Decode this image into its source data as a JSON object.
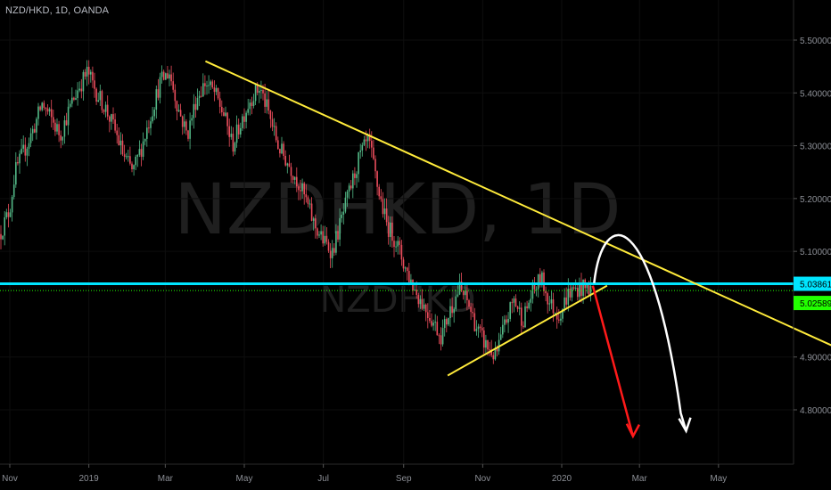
{
  "symbol_title": "NZD/HKD, 1D, OANDA",
  "watermark": {
    "big": "NZDHKD, 1D",
    "small": "NZDHKD"
  },
  "colors": {
    "background": "#000000",
    "up_candle": "#53b987",
    "down_candle": "#eb4d5c",
    "trendline": "#ffeb3b",
    "resistance": "#00e5ff",
    "current_price": "#22ff00",
    "bear_arrow": "#ff1a1a",
    "scenario_arrow": "#ffffff"
  },
  "chart_data": {
    "type": "candlestick",
    "ylim": [
      4.735,
      5.565
    ],
    "yticks": [
      "5.50000",
      "5.40000",
      "5.30000",
      "5.20000",
      "5.10000",
      "4.90000",
      "4.80000"
    ],
    "xticks": [
      "Nov",
      "2019",
      "Mar",
      "May",
      "Jul",
      "Sep",
      "Nov",
      "2020",
      "Mar",
      "May"
    ],
    "price_labels": {
      "resistance": {
        "value": 5.03861,
        "text": "5.03861"
      },
      "current": {
        "value": 5.02589,
        "text": "5.02589"
      }
    },
    "path": [
      [
        "2018-10-24",
        5.13
      ],
      [
        "2018-11-01",
        5.18
      ],
      [
        "2018-11-05",
        5.25
      ],
      [
        "2018-11-12",
        5.29
      ],
      [
        "2018-11-19",
        5.33
      ],
      [
        "2018-11-26",
        5.38
      ],
      [
        "2018-12-03",
        5.35
      ],
      [
        "2018-12-10",
        5.32
      ],
      [
        "2018-12-17",
        5.37
      ],
      [
        "2018-12-24",
        5.41
      ],
      [
        "2018-12-31",
        5.44
      ],
      [
        "2019-01-07",
        5.4
      ],
      [
        "2019-01-14",
        5.37
      ],
      [
        "2019-01-21",
        5.33
      ],
      [
        "2019-01-28",
        5.28
      ],
      [
        "2019-02-04",
        5.25
      ],
      [
        "2019-02-11",
        5.3
      ],
      [
        "2019-02-18",
        5.36
      ],
      [
        "2019-02-25",
        5.42
      ],
      [
        "2019-03-04",
        5.44
      ],
      [
        "2019-03-11",
        5.37
      ],
      [
        "2019-03-18",
        5.32
      ],
      [
        "2019-03-25",
        5.39
      ],
      [
        "2019-04-01",
        5.42
      ],
      [
        "2019-04-08",
        5.4
      ],
      [
        "2019-04-15",
        5.36
      ],
      [
        "2019-04-22",
        5.3
      ],
      [
        "2019-04-29",
        5.35
      ],
      [
        "2019-05-06",
        5.39
      ],
      [
        "2019-05-13",
        5.41
      ],
      [
        "2019-05-20",
        5.36
      ],
      [
        "2019-05-27",
        5.3
      ],
      [
        "2019-06-03",
        5.27
      ],
      [
        "2019-06-10",
        5.24
      ],
      [
        "2019-06-17",
        5.2
      ],
      [
        "2019-06-24",
        5.15
      ],
      [
        "2019-07-01",
        5.12
      ],
      [
        "2019-07-08",
        5.1
      ],
      [
        "2019-07-15",
        5.16
      ],
      [
        "2019-07-22",
        5.22
      ],
      [
        "2019-07-29",
        5.28
      ],
      [
        "2019-08-05",
        5.31
      ],
      [
        "2019-08-12",
        5.22
      ],
      [
        "2019-08-19",
        5.15
      ],
      [
        "2019-08-26",
        5.12
      ],
      [
        "2019-09-02",
        5.07
      ],
      [
        "2019-09-09",
        5.03
      ],
      [
        "2019-09-16",
        5.0
      ],
      [
        "2019-09-23",
        4.97
      ],
      [
        "2019-09-30",
        4.94
      ],
      [
        "2019-10-07",
        4.99
      ],
      [
        "2019-10-14",
        5.03
      ],
      [
        "2019-10-21",
        5.0
      ],
      [
        "2019-10-28",
        4.95
      ],
      [
        "2019-11-04",
        4.92
      ],
      [
        "2019-11-11",
        4.9
      ],
      [
        "2019-11-18",
        4.96
      ],
      [
        "2019-11-25",
        5.01
      ],
      [
        "2019-12-02",
        4.97
      ],
      [
        "2019-12-09",
        5.02
      ],
      [
        "2019-12-16",
        5.05
      ],
      [
        "2019-12-23",
        5.0
      ],
      [
        "2019-12-30",
        4.98
      ],
      [
        "2020-01-06",
        5.02
      ],
      [
        "2020-01-13",
        5.03
      ],
      [
        "2020-01-20",
        5.03
      ],
      [
        "2020-01-24",
        5.03
      ]
    ],
    "drawings": {
      "down_trendline": [
        [
          "2019-04-01",
          5.46
        ],
        [
          "2020-08-25",
          4.89
        ]
      ],
      "up_trendline": [
        [
          "2019-10-05",
          4.865
        ],
        [
          "2020-02-05",
          5.035
        ]
      ],
      "resistance_level": 5.03861,
      "current_level": 5.02589,
      "bear_arrow": [
        [
          "2020-01-25",
          5.035
        ],
        [
          "2020-02-25",
          4.75
        ]
      ],
      "scenario_arrow": {
        "start": [
          "2020-01-26",
          5.04
        ],
        "peak": [
          "2020-02-12",
          5.12
        ],
        "end": [
          "2020-04-06",
          4.76
        ]
      }
    }
  }
}
